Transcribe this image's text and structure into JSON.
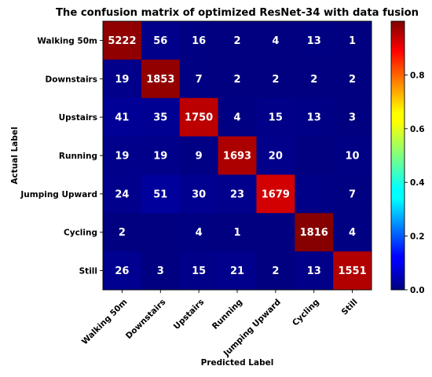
{
  "chart_data": {
    "type": "heatmap",
    "title": "The confusion matrix of optimized ResNet-34 with data fusion",
    "xlabel": "Predicted Label",
    "ylabel": "Actual Label",
    "x_categories": [
      "Walking 50m",
      "Downstairs",
      "Upstairs",
      "Running",
      "Jumping Upward",
      "Cycling",
      "Still"
    ],
    "y_categories": [
      "Walking 50m",
      "Downstairs",
      "Upstairs",
      "Running",
      "Jumping Upward",
      "Cycling",
      "Still"
    ],
    "matrix": [
      [
        5222,
        56,
        16,
        2,
        4,
        13,
        1
      ],
      [
        19,
        1853,
        7,
        2,
        2,
        2,
        2
      ],
      [
        41,
        35,
        1750,
        4,
        15,
        13,
        3
      ],
      [
        19,
        19,
        9,
        1693,
        20,
        0,
        10
      ],
      [
        24,
        51,
        30,
        23,
        1679,
        12,
        7
      ],
      [
        2,
        0,
        4,
        1,
        0,
        1816,
        4
      ],
      [
        26,
        3,
        15,
        21,
        2,
        13,
        1551
      ]
    ],
    "hidden_labels": [
      [
        3,
        5
      ],
      [
        4,
        5
      ],
      [
        5,
        1
      ],
      [
        5,
        4
      ]
    ],
    "colorbar": {
      "colormap": "jet",
      "range": [
        0.0,
        1.0
      ],
      "ticks": [
        0.0,
        0.2,
        0.4,
        0.6,
        0.8
      ],
      "tick_labels": [
        "0.0",
        "0.2",
        "0.4",
        "0.6",
        "0.8"
      ]
    }
  }
}
